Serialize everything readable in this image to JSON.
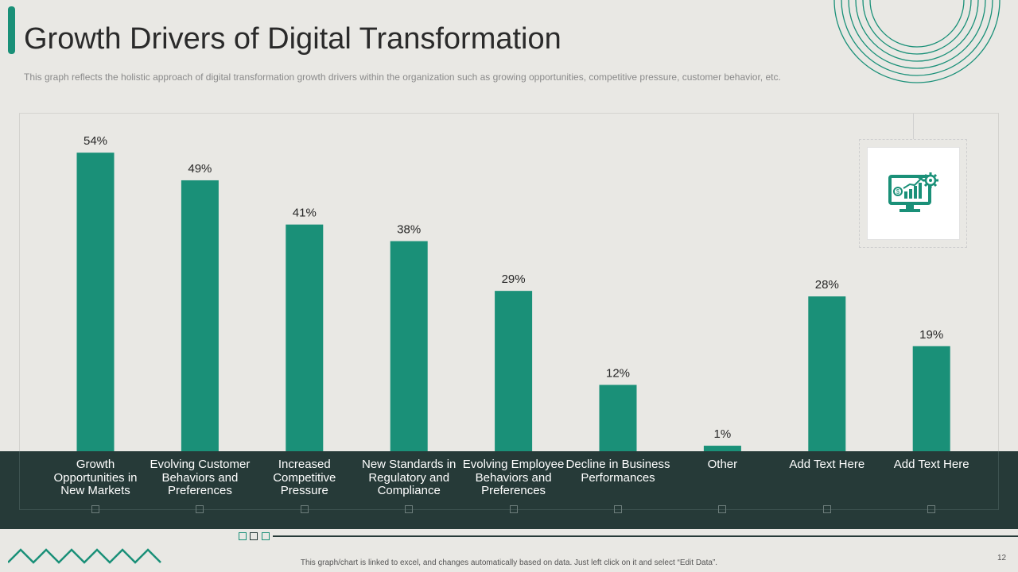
{
  "header": {
    "title": "Growth Drivers of Digital Transformation",
    "subtitle": "This graph reflects the holistic approach of digital transformation growth drivers within the organization such as growing opportunities, competitive pressure, customer behavior, etc."
  },
  "footer": {
    "note": "This graph/chart is linked to excel, and changes automatically based on data. Just left click on it and select “Edit Data”.",
    "page_number": "12"
  },
  "icon": {
    "name": "monitor-growth-gear-icon"
  },
  "colors": {
    "bar": "#1a9078",
    "band": "#263a38",
    "background": "#e9e8e4"
  },
  "chart_data": {
    "type": "bar",
    "categories": [
      "Growth Opportunities in New Markets",
      "Evolving Customer Behaviors and Preferences",
      "Increased Competitive Pressure",
      "New Standards in Regulatory and Compliance",
      "Evolving Employee Behaviors and Preferences",
      "Decline in Business Performances",
      "Other",
      "Add Text Here",
      "Add Text Here"
    ],
    "values": [
      54,
      49,
      41,
      38,
      29,
      12,
      1,
      28,
      19
    ],
    "value_labels": [
      "54%",
      "49%",
      "41%",
      "38%",
      "29%",
      "12%",
      "1%",
      "28%",
      "19%"
    ],
    "unit": "%",
    "title": "",
    "xlabel": "",
    "ylabel": "",
    "ylim": [
      0,
      60
    ],
    "grid": false,
    "legend": "none"
  }
}
